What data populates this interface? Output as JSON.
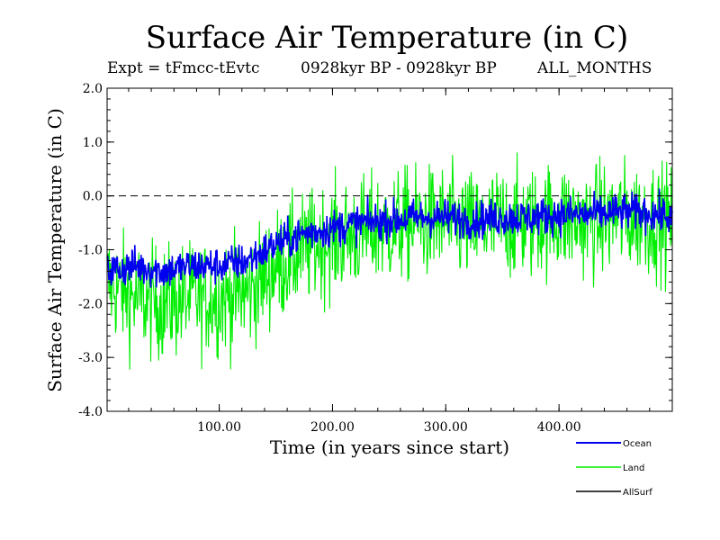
{
  "chart_data": {
    "type": "line",
    "title": "Surface Air Temperature (in C)",
    "expt": "Expt = tFmcc-tEvtc",
    "period": "0928kyr BP - 0928kyr BP",
    "months": "ALL_MONTHS",
    "xlabel": "Time (in years since start)",
    "ylabel": "Surface Air Temperature (in C)",
    "xlim": [
      1,
      500
    ],
    "ylim": [
      -4.0,
      2.0
    ],
    "x_ticks": [
      100,
      200,
      300,
      400
    ],
    "x_tick_labels": [
      "100.00",
      "200.00",
      "300.00",
      "400.00"
    ],
    "y_ticks": [
      -4,
      -3,
      -2,
      -1,
      0,
      1,
      2
    ],
    "y_tick_labels": [
      "-4.0",
      "-3.0",
      "-2.0",
      "-1.0",
      "0.0",
      "1.0",
      "2.0"
    ],
    "reference_line": 0.0,
    "legend": [
      "Ocean",
      "Land",
      "AllSurf"
    ],
    "series": [
      {
        "name": "Land",
        "color": "#00ee00",
        "trend_x": [
          1,
          25,
          50,
          75,
          100,
          125,
          150,
          175,
          200,
          225,
          250,
          275,
          300,
          325,
          350,
          375,
          400,
          425,
          450,
          475,
          500
        ],
        "trend_values": [
          -1.6,
          -1.9,
          -2.0,
          -1.9,
          -1.9,
          -1.8,
          -1.3,
          -1.0,
          -0.8,
          -0.7,
          -0.6,
          -0.5,
          -0.5,
          -0.6,
          -0.5,
          -0.5,
          -0.4,
          -0.5,
          -0.4,
          -0.4,
          -0.5
        ],
        "noise_amplitude": 0.75
      },
      {
        "name": "Ocean",
        "color": "#0000ee",
        "trend_x": [
          1,
          25,
          50,
          75,
          100,
          125,
          150,
          175,
          200,
          225,
          250,
          275,
          300,
          325,
          350,
          375,
          400,
          425,
          450,
          475,
          500
        ],
        "trend_values": [
          -1.4,
          -1.3,
          -1.4,
          -1.3,
          -1.3,
          -1.2,
          -0.9,
          -0.7,
          -0.6,
          -0.5,
          -0.45,
          -0.4,
          -0.4,
          -0.45,
          -0.4,
          -0.4,
          -0.35,
          -0.35,
          -0.3,
          -0.3,
          -0.4
        ],
        "noise_amplitude": 0.25
      },
      {
        "name": "AllSurf",
        "color": "#000000",
        "trend_x": [],
        "trend_values": [],
        "noise_amplitude": 0
      }
    ]
  }
}
